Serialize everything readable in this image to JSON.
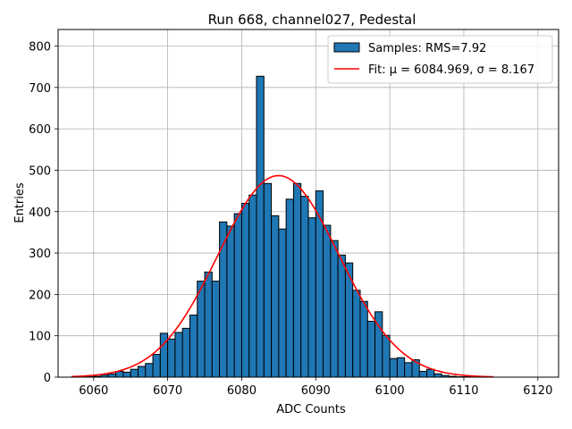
{
  "chart_data": {
    "type": "bar",
    "title": "Run 668, channel027, Pedestal",
    "xlabel": "ADC Counts",
    "ylabel": "Entries",
    "xlim": [
      6055.2,
      6122.8
    ],
    "ylim": [
      0,
      840
    ],
    "xticks": [
      6060,
      6070,
      6080,
      6090,
      6100,
      6110,
      6120
    ],
    "yticks": [
      0,
      100,
      200,
      300,
      400,
      500,
      600,
      700,
      800
    ],
    "grid": true,
    "legend_position": "top-right",
    "colors": {
      "bars": "#1f77b4",
      "bar_edge": "#000000",
      "fit": "#ff0000",
      "grid": "#b0b0b0"
    },
    "histogram": {
      "name": "Samples: RMS=7.92",
      "bin_edges": [
        6058,
        6059,
        6060,
        6061,
        6062,
        6063,
        6064,
        6065,
        6066,
        6067,
        6068,
        6069,
        6070,
        6071,
        6072,
        6073,
        6074,
        6075,
        6076,
        6077,
        6078,
        6079,
        6080,
        6081,
        6082,
        6083,
        6084,
        6085,
        6086,
        6087,
        6088,
        6089,
        6090,
        6091,
        6092,
        6093,
        6094,
        6095,
        6096,
        6097,
        6098,
        6099,
        6100,
        6101,
        6102,
        6103,
        6104,
        6105,
        6106,
        6107,
        6108,
        6109,
        6110,
        6111
      ],
      "counts": [
        1,
        1,
        2,
        5,
        8,
        14,
        12,
        19,
        26,
        33,
        55,
        106,
        92,
        108,
        118,
        150,
        232,
        254,
        232,
        375,
        365,
        395,
        420,
        440,
        727,
        468,
        390,
        358,
        430,
        468,
        437,
        385,
        450,
        367,
        330,
        295,
        276,
        210,
        183,
        135,
        158,
        101,
        45,
        47,
        35,
        42,
        14,
        19,
        8,
        4,
        2,
        1,
        1
      ]
    },
    "fit": {
      "name": "Fit: μ = 6084.969, σ = 8.167",
      "mu": 6084.969,
      "sigma": 8.167,
      "amplitude": 487,
      "x_range": [
        6057,
        6114
      ]
    }
  }
}
